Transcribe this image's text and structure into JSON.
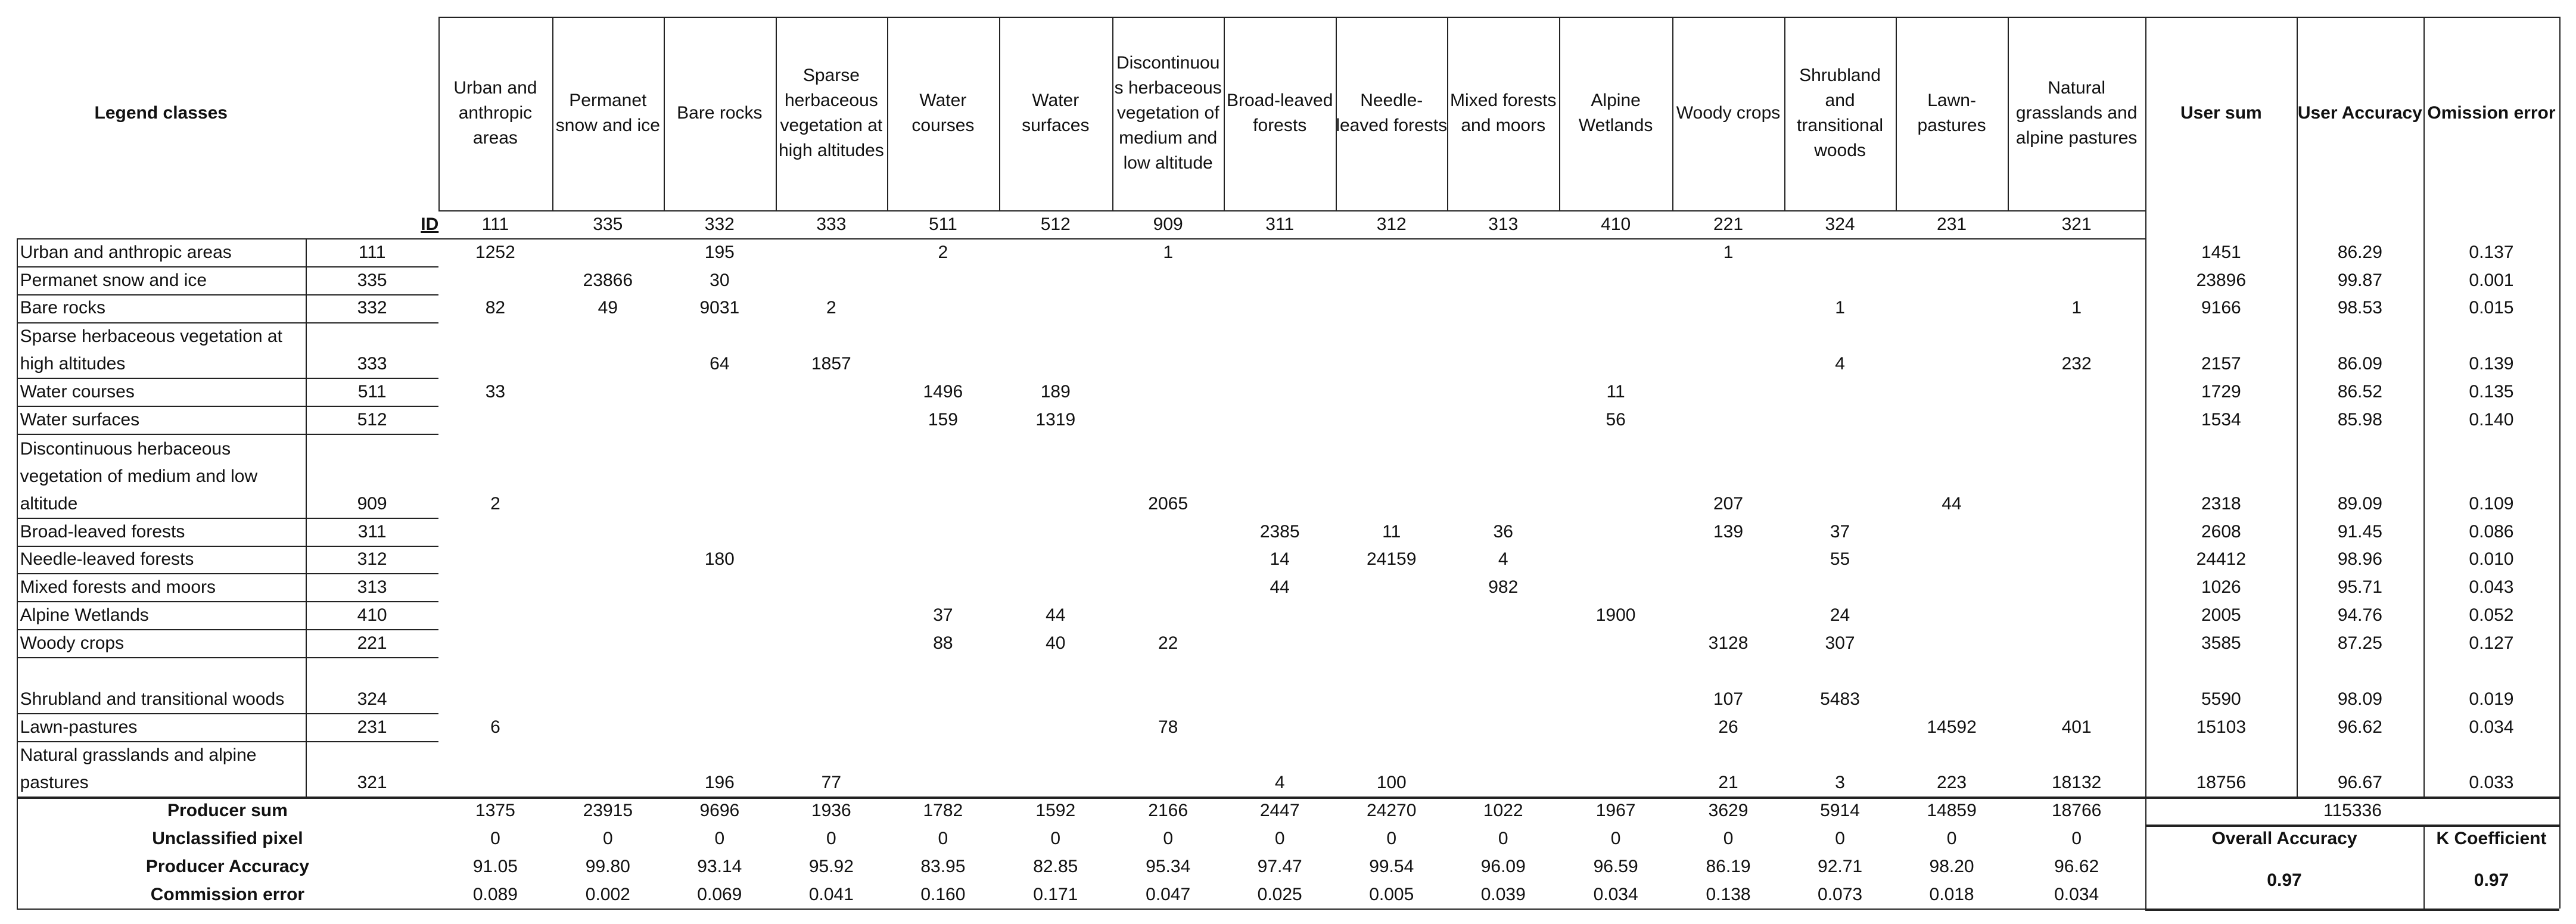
{
  "table": {
    "header": {
      "legend_classes": "Legend classes",
      "columns": [
        "Urban and anthropic areas",
        "Permanet snow and ice",
        "Bare rocks",
        "Sparse herbaceous vegetation at high altitudes",
        "Water courses",
        "Water surfaces",
        "Discontinuous herbaceous vegetation of medium and low altitude",
        "Broad-leaved forests",
        "Needle-leaved forests",
        "Mixed forests and moors",
        "Alpine Wetlands",
        "Woody crops",
        "Shrubland and transitional woods",
        "Lawn-pastures",
        "Natural grasslands and alpine pastures"
      ],
      "user_sum": "User sum",
      "user_accuracy": "User Accuracy",
      "omission_error": "Omission error",
      "id_label": "ID",
      "column_ids": [
        111,
        335,
        332,
        333,
        511,
        512,
        909,
        311,
        312,
        313,
        410,
        221,
        324,
        231,
        321
      ]
    },
    "rows": [
      {
        "name": "Urban and anthropic areas",
        "id": 111,
        "cells": [
          1252,
          null,
          195,
          null,
          2,
          null,
          1,
          null,
          null,
          null,
          null,
          1,
          null,
          null,
          null
        ],
        "user_sum": 1451,
        "user_accuracy": "86.29",
        "omission_error": "0.137"
      },
      {
        "name": "Permanet snow and ice",
        "id": 335,
        "cells": [
          null,
          23866,
          30,
          null,
          null,
          null,
          null,
          null,
          null,
          null,
          null,
          null,
          null,
          null,
          null
        ],
        "user_sum": 23896,
        "user_accuracy": "99.87",
        "omission_error": "0.001"
      },
      {
        "name": "Bare rocks",
        "id": 332,
        "cells": [
          82,
          49,
          9031,
          2,
          null,
          null,
          null,
          null,
          null,
          null,
          null,
          null,
          1,
          null,
          1
        ],
        "user_sum": 9166,
        "user_accuracy": "98.53",
        "omission_error": "0.015"
      },
      {
        "name": "Sparse herbaceous vegetation at high altitudes",
        "id": 333,
        "cells": [
          null,
          null,
          64,
          1857,
          null,
          null,
          null,
          null,
          null,
          null,
          null,
          null,
          4,
          null,
          232
        ],
        "user_sum": 2157,
        "user_accuracy": "86.09",
        "omission_error": "0.139"
      },
      {
        "name": "Water courses",
        "id": 511,
        "cells": [
          33,
          null,
          null,
          null,
          1496,
          189,
          null,
          null,
          null,
          null,
          11,
          null,
          null,
          null,
          null
        ],
        "user_sum": 1729,
        "user_accuracy": "86.52",
        "omission_error": "0.135"
      },
      {
        "name": "Water surfaces",
        "id": 512,
        "cells": [
          null,
          null,
          null,
          null,
          159,
          1319,
          null,
          null,
          null,
          null,
          56,
          null,
          null,
          null,
          null
        ],
        "user_sum": 1534,
        "user_accuracy": "85.98",
        "omission_error": "0.140"
      },
      {
        "name": "Discontinuous herbaceous vegetation of medium and low altitude",
        "id": 909,
        "cells": [
          2,
          null,
          null,
          null,
          null,
          null,
          2065,
          null,
          null,
          null,
          null,
          207,
          null,
          44,
          null
        ],
        "user_sum": 2318,
        "user_accuracy": "89.09",
        "omission_error": "0.109"
      },
      {
        "name": "Broad-leaved forests",
        "id": 311,
        "cells": [
          null,
          null,
          null,
          null,
          null,
          null,
          null,
          2385,
          11,
          36,
          null,
          139,
          37,
          null,
          null
        ],
        "user_sum": 2608,
        "user_accuracy": "91.45",
        "omission_error": "0.086"
      },
      {
        "name": "Needle-leaved forests",
        "id": 312,
        "cells": [
          null,
          null,
          180,
          null,
          null,
          null,
          null,
          14,
          24159,
          4,
          null,
          null,
          55,
          null,
          null
        ],
        "user_sum": 24412,
        "user_accuracy": "98.96",
        "omission_error": "0.010"
      },
      {
        "name": "Mixed forests and moors",
        "id": 313,
        "cells": [
          null,
          null,
          null,
          null,
          null,
          null,
          null,
          44,
          null,
          982,
          null,
          null,
          null,
          null,
          null
        ],
        "user_sum": 1026,
        "user_accuracy": "95.71",
        "omission_error": "0.043"
      },
      {
        "name": "Alpine Wetlands",
        "id": 410,
        "cells": [
          null,
          null,
          null,
          null,
          37,
          44,
          null,
          null,
          null,
          null,
          1900,
          null,
          24,
          null,
          null
        ],
        "user_sum": 2005,
        "user_accuracy": "94.76",
        "omission_error": "0.052"
      },
      {
        "name": "Woody crops",
        "id": 221,
        "cells": [
          null,
          null,
          null,
          null,
          88,
          40,
          22,
          null,
          null,
          null,
          null,
          3128,
          307,
          null,
          null
        ],
        "user_sum": 3585,
        "user_accuracy": "87.25",
        "omission_error": "0.127"
      },
      {
        "name": "Shrubland and transitional woods",
        "id": 324,
        "cells": [
          null,
          null,
          null,
          null,
          null,
          null,
          null,
          null,
          null,
          null,
          null,
          107,
          5483,
          null,
          null
        ],
        "user_sum": 5590,
        "user_accuracy": "98.09",
        "omission_error": "0.019"
      },
      {
        "name": "Lawn-pastures",
        "id": 231,
        "cells": [
          6,
          null,
          null,
          null,
          null,
          null,
          78,
          null,
          null,
          null,
          null,
          26,
          null,
          14592,
          401
        ],
        "user_sum": 15103,
        "user_accuracy": "96.62",
        "omission_error": "0.034"
      },
      {
        "name": "Natural grasslands and alpine pastures",
        "id": 321,
        "cells": [
          null,
          null,
          196,
          77,
          null,
          null,
          null,
          4,
          100,
          null,
          null,
          21,
          3,
          223,
          18132
        ],
        "user_sum": 18756,
        "user_accuracy": "96.67",
        "omission_error": "0.033"
      }
    ],
    "footer": {
      "producer_sum": {
        "label": "Producer sum",
        "values": [
          1375,
          23915,
          9696,
          1936,
          1782,
          1592,
          2166,
          2447,
          24270,
          1022,
          1967,
          3629,
          5914,
          14859,
          18766
        ]
      },
      "total": 115336,
      "unclassified": {
        "label": "Unclassified pixel",
        "values": [
          0,
          0,
          0,
          0,
          0,
          0,
          0,
          0,
          0,
          0,
          0,
          0,
          0,
          0,
          0
        ]
      },
      "producer_accuracy": {
        "label": "Producer Accuracy",
        "values": [
          "91.05",
          "99.80",
          "93.14",
          "95.92",
          "83.95",
          "82.85",
          "95.34",
          "97.47",
          "99.54",
          "96.09",
          "96.59",
          "86.19",
          "92.71",
          "98.20",
          "96.62"
        ]
      },
      "commission_error": {
        "label": "Commission error",
        "values": [
          "0.089",
          "0.002",
          "0.069",
          "0.041",
          "0.160",
          "0.171",
          "0.047",
          "0.025",
          "0.005",
          "0.039",
          "0.034",
          "0.138",
          "0.073",
          "0.018",
          "0.034"
        ]
      },
      "overall_accuracy": {
        "label": "Overall Accuracy",
        "value": 0.97
      },
      "k_coefficient": {
        "label": "K Coefficient",
        "value": 0.97
      }
    }
  }
}
